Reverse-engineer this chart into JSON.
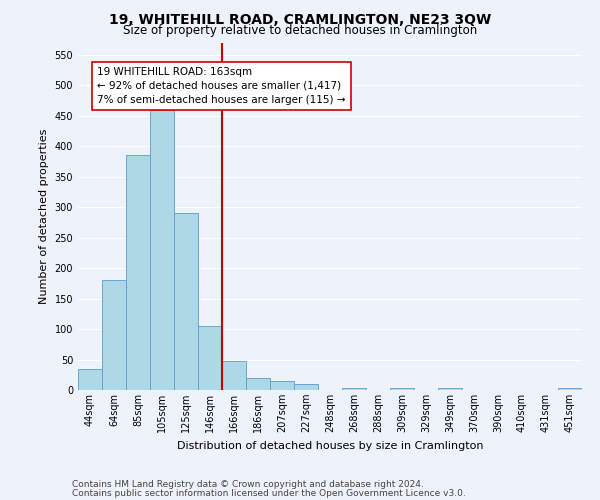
{
  "title1": "19, WHITEHILL ROAD, CRAMLINGTON, NE23 3QW",
  "title2": "Size of property relative to detached houses in Cramlington",
  "xlabel": "Distribution of detached houses by size in Cramlington",
  "ylabel": "Number of detached properties",
  "categories": [
    "44sqm",
    "64sqm",
    "85sqm",
    "105sqm",
    "125sqm",
    "146sqm",
    "166sqm",
    "186sqm",
    "207sqm",
    "227sqm",
    "248sqm",
    "268sqm",
    "288sqm",
    "309sqm",
    "329sqm",
    "349sqm",
    "370sqm",
    "390sqm",
    "410sqm",
    "431sqm",
    "451sqm"
  ],
  "values": [
    35,
    180,
    385,
    460,
    290,
    105,
    47,
    20,
    15,
    10,
    0,
    3,
    0,
    3,
    0,
    3,
    0,
    0,
    0,
    0,
    3
  ],
  "bar_color": "#add8e6",
  "bar_edgecolor": "#5b9bd5",
  "vline_x_index": 6,
  "vline_color": "#cc0000",
  "annotation_text": "19 WHITEHILL ROAD: 163sqm\n← 92% of detached houses are smaller (1,417)\n7% of semi-detached houses are larger (115) →",
  "annotation_box_color": "#ffffff",
  "annotation_box_edgecolor": "#cc0000",
  "ylim": [
    0,
    570
  ],
  "yticks": [
    0,
    50,
    100,
    150,
    200,
    250,
    300,
    350,
    400,
    450,
    500,
    550
  ],
  "footer1": "Contains HM Land Registry data © Crown copyright and database right 2024.",
  "footer2": "Contains public sector information licensed under the Open Government Licence v3.0.",
  "background_color": "#eef2fa",
  "grid_color": "#ffffff",
  "title1_fontsize": 10,
  "title2_fontsize": 8.5,
  "xlabel_fontsize": 8,
  "ylabel_fontsize": 8,
  "annotation_fontsize": 7.5,
  "footer_fontsize": 6.5,
  "tick_fontsize": 7
}
